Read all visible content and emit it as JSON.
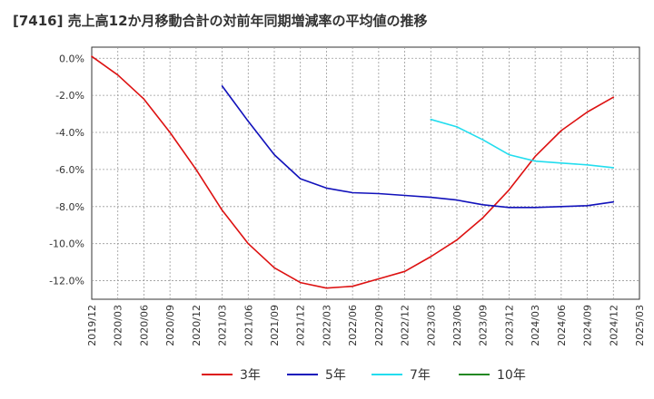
{
  "chart_data": {
    "type": "line",
    "title": "[7416]  売上高12か月移動合計の対前年同期増減率の平均値の推移",
    "x_ticks": [
      "2019/12",
      "2020/03",
      "2020/06",
      "2020/09",
      "2020/12",
      "2021/03",
      "2021/06",
      "2021/09",
      "2021/12",
      "2022/03",
      "2022/06",
      "2022/09",
      "2022/12",
      "2023/03",
      "2023/06",
      "2023/09",
      "2023/12",
      "2024/03",
      "2024/06",
      "2024/09",
      "2024/12",
      "2025/03"
    ],
    "y_ticks": [
      0,
      -2,
      -4,
      -6,
      -8,
      -10,
      -12
    ],
    "y_tick_labels": [
      "0.0%",
      "-2.0%",
      "-4.0%",
      "-6.0%",
      "-8.0%",
      "-10.0%",
      "-12.0%"
    ],
    "ylim": [
      -13,
      0.6
    ],
    "grid": true,
    "legend_position": "bottom",
    "series": [
      {
        "name": "3年",
        "color": "#dd1111",
        "x": [
          "2019/12",
          "2020/03",
          "2020/06",
          "2020/09",
          "2020/12",
          "2021/03",
          "2021/06",
          "2021/09",
          "2021/12",
          "2022/03",
          "2022/06",
          "2022/09",
          "2022/12",
          "2023/03",
          "2023/06",
          "2023/09",
          "2023/12",
          "2024/03",
          "2024/06",
          "2024/09",
          "2024/12"
        ],
        "values": [
          0.1,
          -0.9,
          -2.2,
          -4.0,
          -6.0,
          -8.2,
          -10.0,
          -11.3,
          -12.1,
          -12.4,
          -12.3,
          -11.9,
          -11.5,
          -10.7,
          -9.8,
          -8.6,
          -7.1,
          -5.3,
          -3.9,
          -2.9,
          -2.1
        ]
      },
      {
        "name": "5年",
        "color": "#1111bb",
        "x": [
          "2021/03",
          "2021/06",
          "2021/09",
          "2021/12",
          "2022/03",
          "2022/06",
          "2022/09",
          "2022/12",
          "2023/03",
          "2023/06",
          "2023/09",
          "2023/12",
          "2024/03",
          "2024/06",
          "2024/09",
          "2024/12"
        ],
        "values": [
          -1.5,
          -3.4,
          -5.2,
          -6.5,
          -7.0,
          -7.25,
          -7.3,
          -7.4,
          -7.5,
          -7.65,
          -7.9,
          -8.05,
          -8.05,
          -8.0,
          -7.95,
          -7.75
        ]
      },
      {
        "name": "7年",
        "color": "#22ddee",
        "x": [
          "2023/03",
          "2023/06",
          "2023/09",
          "2023/12",
          "2024/03",
          "2024/06",
          "2024/09",
          "2024/12"
        ],
        "values": [
          -3.3,
          -3.7,
          -4.4,
          -5.2,
          -5.55,
          -5.65,
          -5.75,
          -5.9
        ]
      },
      {
        "name": "10年",
        "color": "#228822",
        "x": [],
        "values": []
      }
    ]
  }
}
